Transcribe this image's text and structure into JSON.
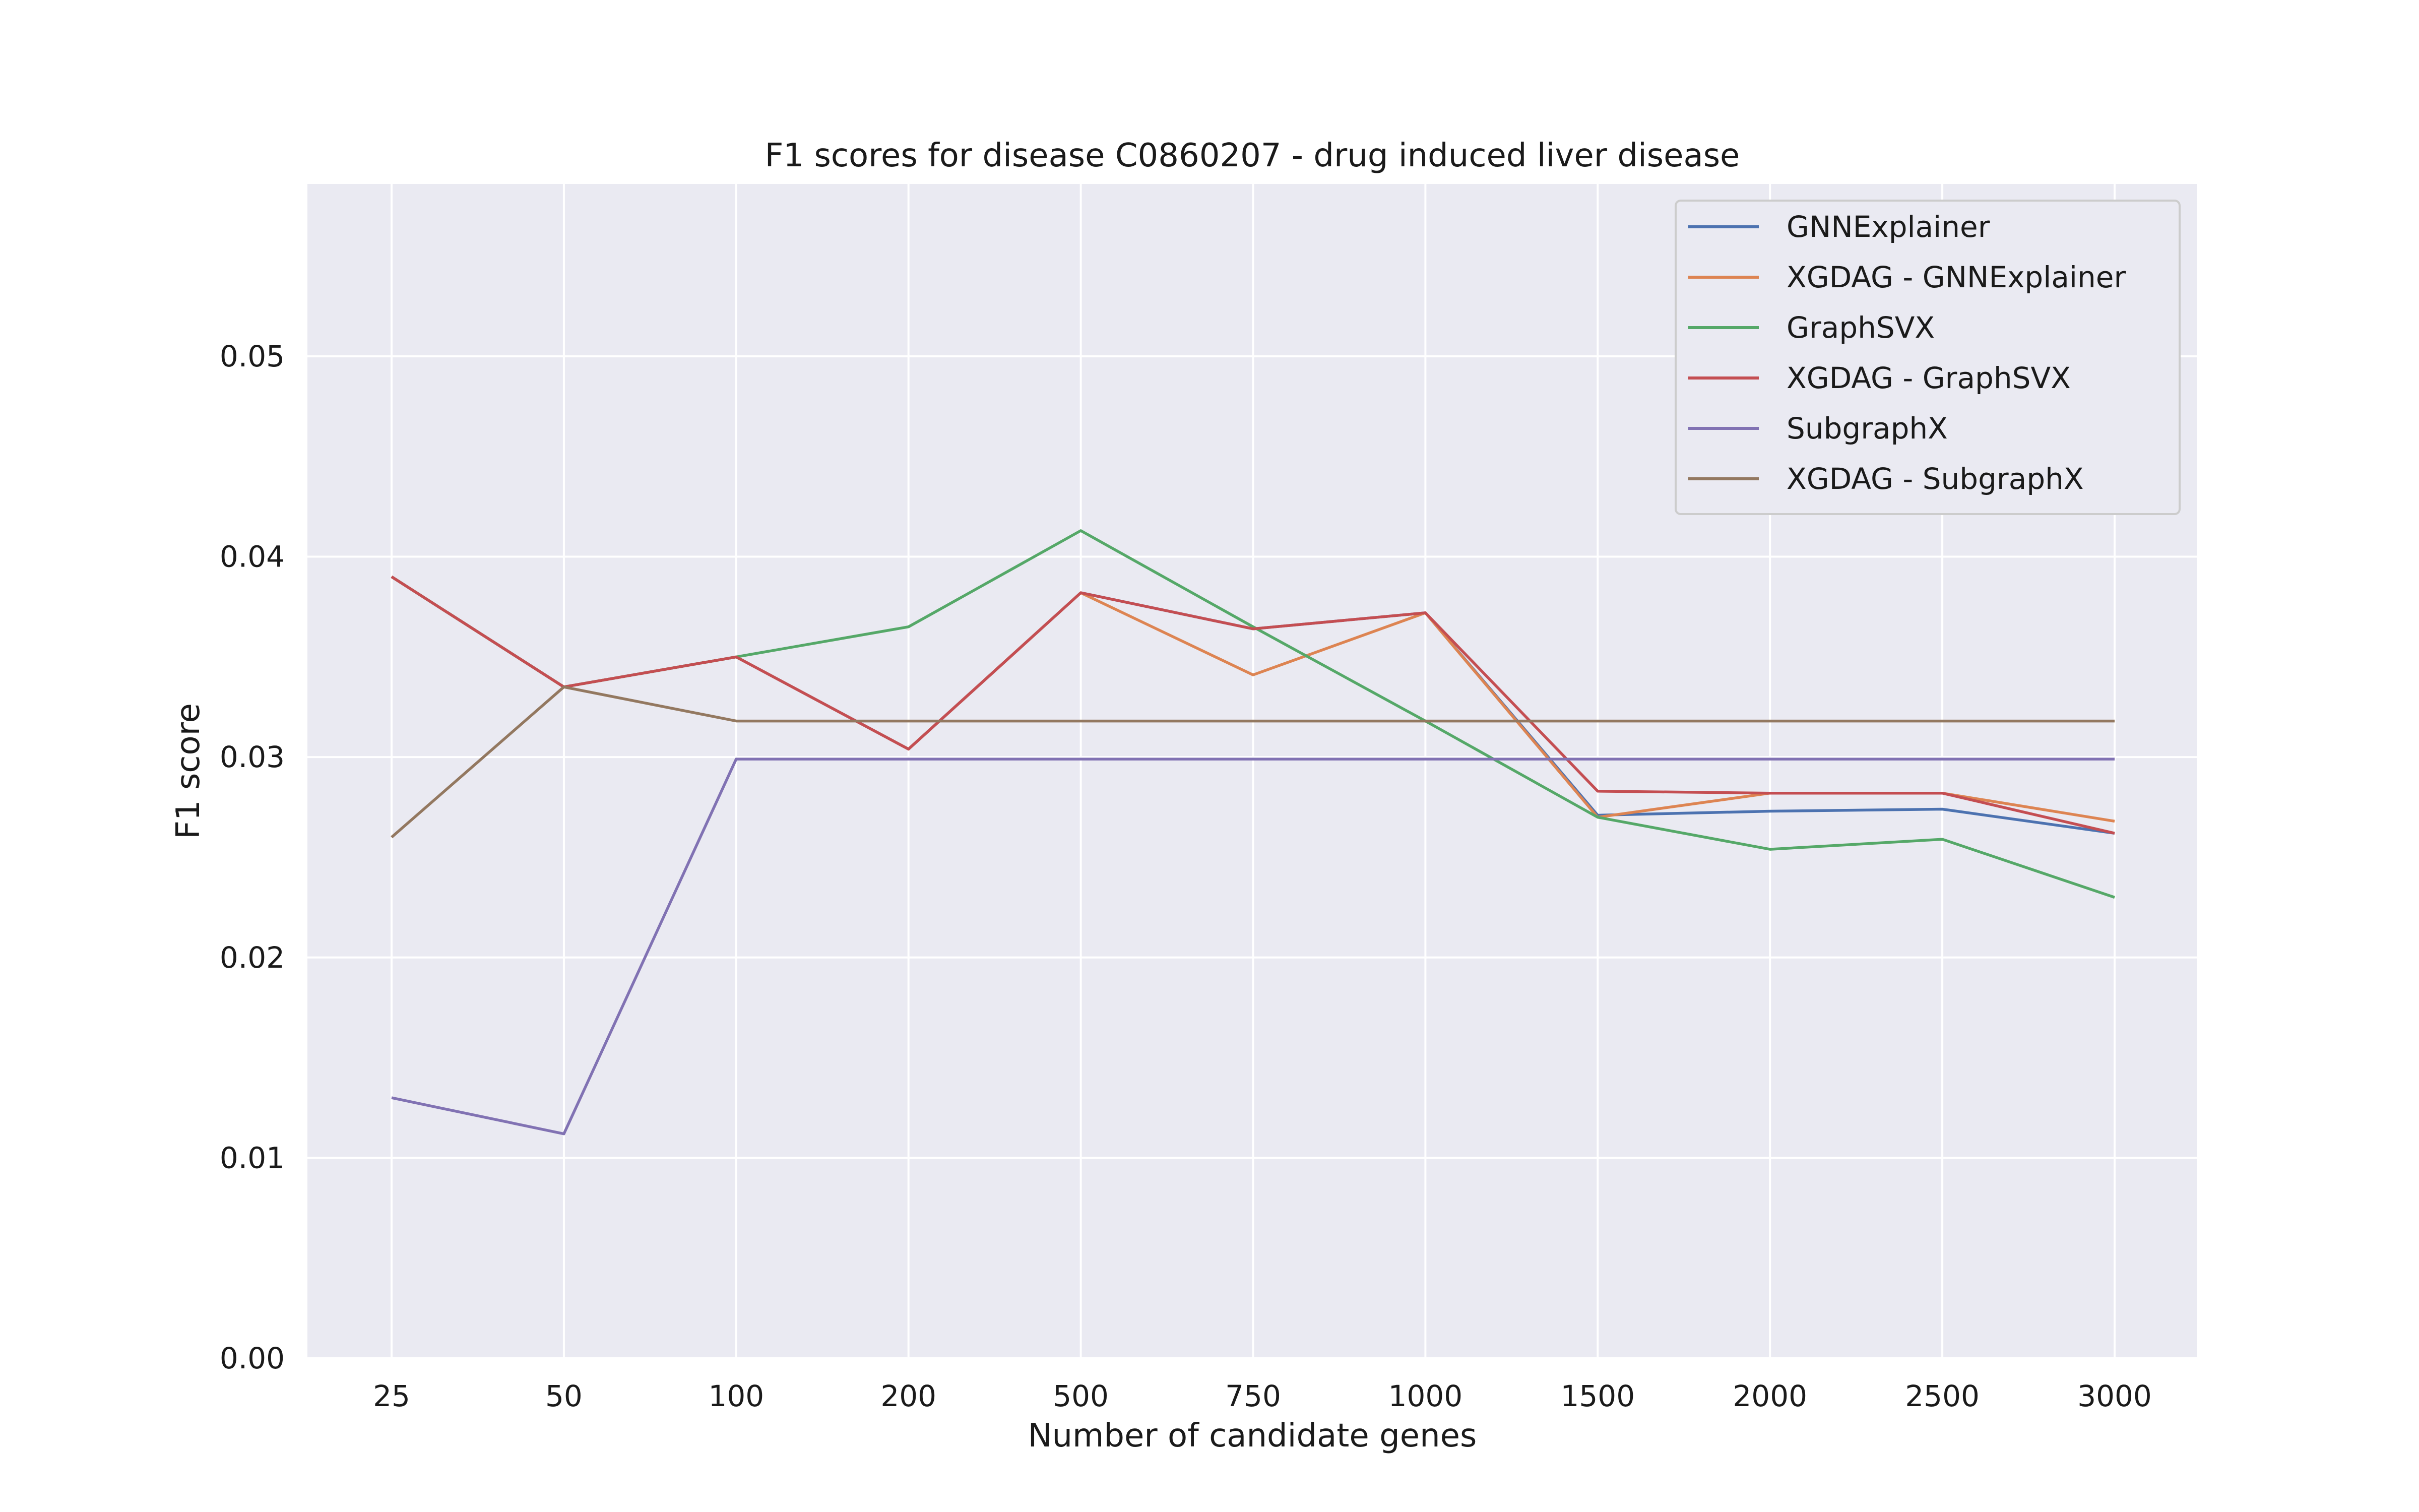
{
  "chart_data": {
    "type": "line",
    "title": "F1 scores for disease C0860207 - drug induced liver disease",
    "xlabel": "Number of candidate genes",
    "ylabel": "F1 score",
    "categories": [
      "25",
      "50",
      "100",
      "200",
      "500",
      "750",
      "1000",
      "1500",
      "2000",
      "2500",
      "3000"
    ],
    "ylim": [
      0.0,
      0.0586
    ],
    "yticks": [
      0.0,
      0.01,
      0.02,
      0.03,
      0.04,
      0.05
    ],
    "ytick_labels": [
      "0.00",
      "0.01",
      "0.02",
      "0.03",
      "0.04",
      "0.05"
    ],
    "grid": true,
    "legend_position": "top-right",
    "series": [
      {
        "name": "GNNExplainer",
        "color": "#4c72b0",
        "values": [
          0.039,
          0.0335,
          0.035,
          0.0304,
          0.0382,
          0.0364,
          0.0372,
          0.0271,
          0.0273,
          0.0274,
          0.0262
        ]
      },
      {
        "name": "XGDAG - GNNExplainer",
        "color": "#dd8452",
        "values": [
          0.039,
          0.0335,
          0.035,
          0.0304,
          0.0382,
          0.0341,
          0.0372,
          0.027,
          0.0282,
          0.0282,
          0.0268
        ]
      },
      {
        "name": "GraphSVX",
        "color": "#55a868",
        "values": [
          0.039,
          0.0335,
          0.035,
          0.0365,
          0.0413,
          0.0365,
          0.0318,
          0.027,
          0.0254,
          0.0259,
          0.023
        ]
      },
      {
        "name": "XGDAG - GraphSVX",
        "color": "#c44e52",
        "values": [
          0.039,
          0.0335,
          0.035,
          0.0304,
          0.0382,
          0.0364,
          0.0372,
          0.0283,
          0.0282,
          0.0282,
          0.0262
        ]
      },
      {
        "name": "SubgraphX",
        "color": "#8172b3",
        "values": [
          0.013,
          0.0112,
          0.0299,
          0.0299,
          0.0299,
          0.0299,
          0.0299,
          0.0299,
          0.0299,
          0.0299,
          0.0299
        ]
      },
      {
        "name": "XGDAG - SubgraphX",
        "color": "#937860",
        "values": [
          0.026,
          0.0335,
          0.0318,
          0.0318,
          0.0318,
          0.0318,
          0.0318,
          0.0318,
          0.0318,
          0.0318,
          0.0318
        ]
      }
    ]
  }
}
